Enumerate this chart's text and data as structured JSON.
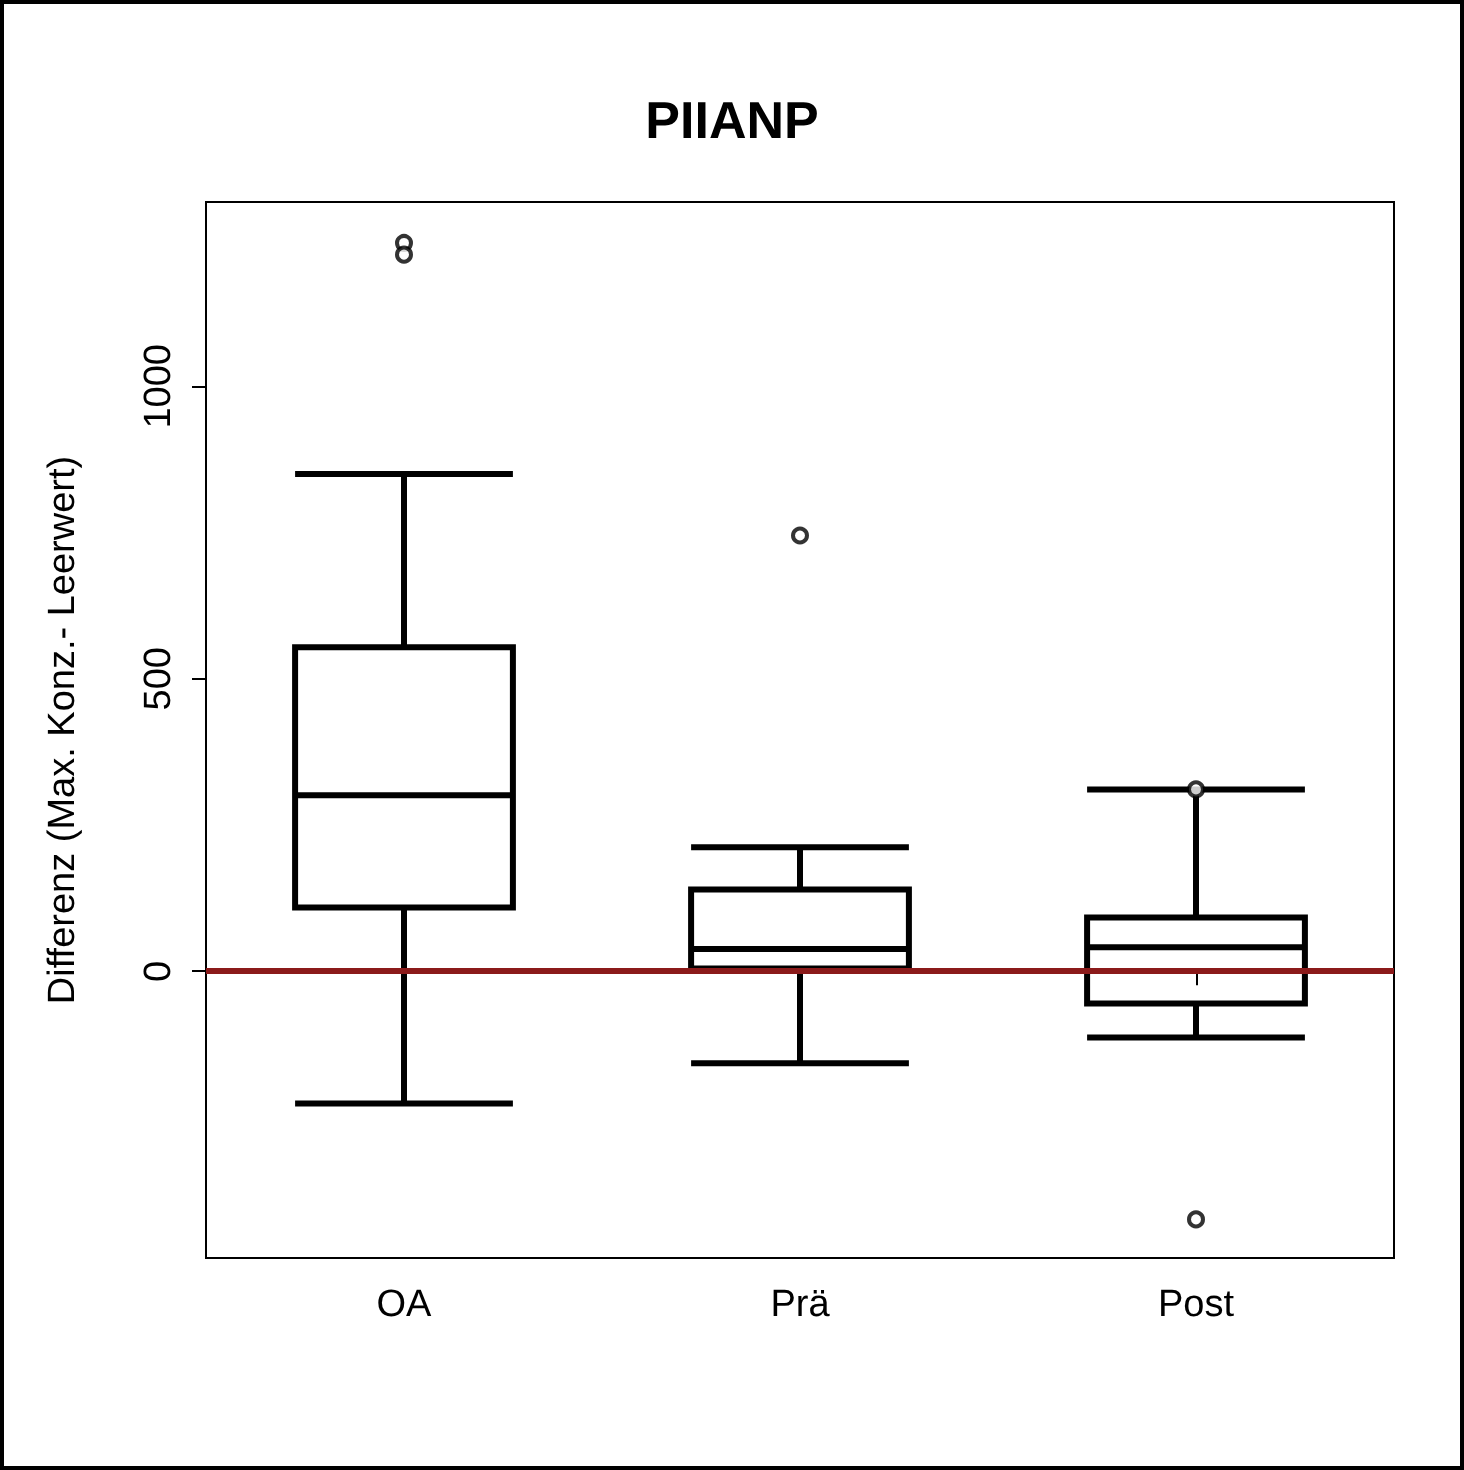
{
  "chart_data": {
    "type": "box",
    "title": "PIIANP",
    "ylabel": "Differenz (Max. Konz.- Leerwert)",
    "categories": [
      "OA",
      "Prä",
      "Post"
    ],
    "boxes": [
      {
        "low": -226,
        "q1": 109,
        "median": 301,
        "q3": 554,
        "high": 850,
        "outliers": [
          1245,
          1225
        ]
      },
      {
        "low": -157,
        "q1": 5,
        "median": 38,
        "q3": 140,
        "high": 212,
        "outliers": [
          745
        ]
      },
      {
        "low": -113,
        "q1": -55,
        "median": 41,
        "q3": 92,
        "high": 311,
        "outliers": [
          311,
          -424
        ]
      }
    ],
    "color": "#000000",
    "ylim": [
      -490,
      1315
    ],
    "yticks": [
      0,
      500,
      1000
    ],
    "ref_lines": [
      {
        "axis": "y",
        "value": 0,
        "color": "#8b1a1a",
        "line_style": "solid"
      }
    ],
    "grid": false,
    "legend": false,
    "marker": "circle"
  }
}
